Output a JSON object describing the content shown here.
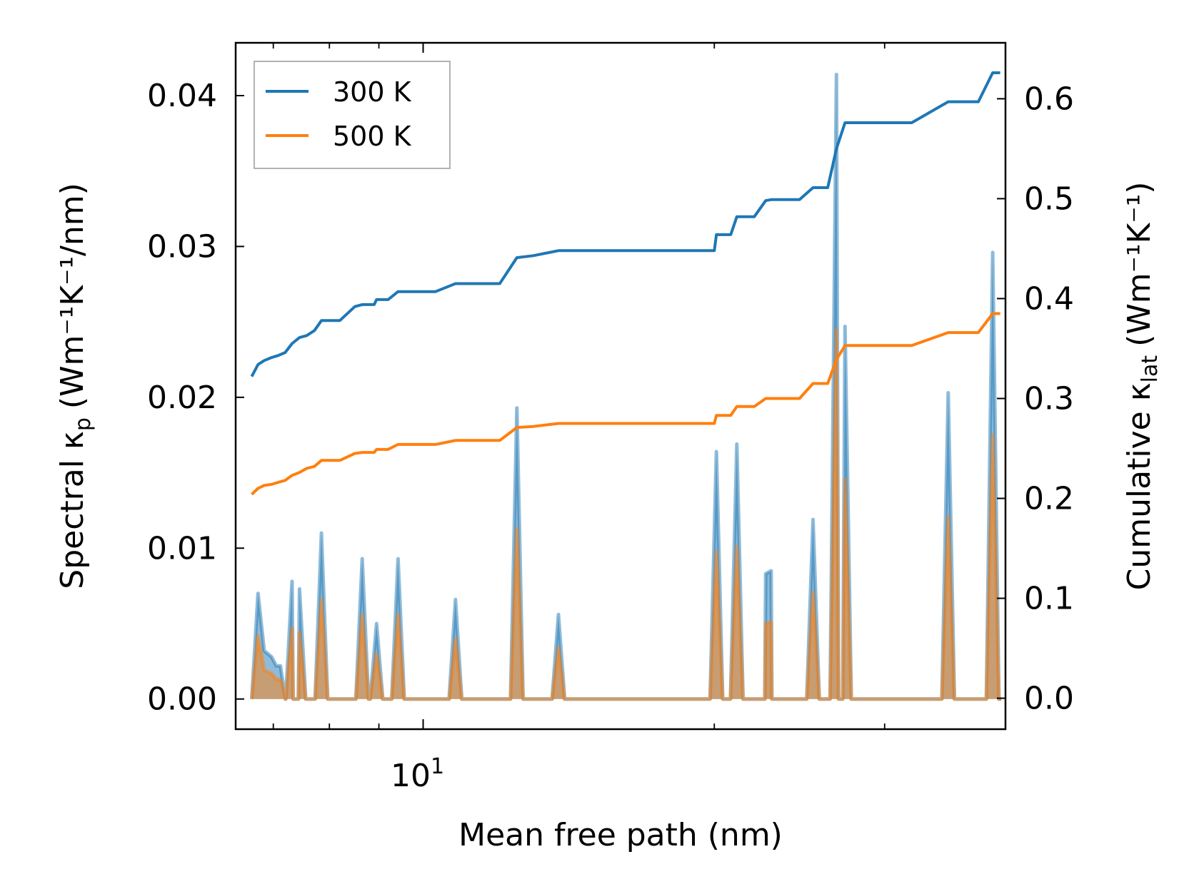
{
  "chart_data": {
    "type": "line",
    "xlabel": "Mean free path (nm)",
    "ylabel_left": {
      "text": "Spectral κ",
      "sub": "p",
      "unit": "(Wm⁻¹K⁻¹/nm)"
    },
    "ylabel_right": {
      "text": "Cumulative κ",
      "sub": "lat",
      "unit": "(Wm⁻¹K⁻¹)"
    },
    "xscale": "log",
    "xlim": [
      6.4,
      40
    ],
    "ylim_left": [
      -0.002,
      0.0435
    ],
    "ylim_right": [
      -0.031,
      0.656
    ],
    "x_tick_labels": [
      {
        "value": 10,
        "base": "10",
        "exp": "1"
      }
    ],
    "y_left_ticks": [
      {
        "value": 0.0,
        "label": "0.00"
      },
      {
        "value": 0.01,
        "label": "0.01"
      },
      {
        "value": 0.02,
        "label": "0.02"
      },
      {
        "value": 0.03,
        "label": "0.03"
      },
      {
        "value": 0.04,
        "label": "0.04"
      }
    ],
    "y_right_ticks": [
      {
        "value": 0.0,
        "label": "0.0"
      },
      {
        "value": 0.1,
        "label": "0.1"
      },
      {
        "value": 0.2,
        "label": "0.2"
      },
      {
        "value": 0.3,
        "label": "0.3"
      },
      {
        "value": 0.4,
        "label": "0.4"
      },
      {
        "value": 0.5,
        "label": "0.5"
      },
      {
        "value": 0.6,
        "label": "0.6"
      }
    ],
    "legend": {
      "placement": "top-left",
      "entries": [
        {
          "name": "300 K",
          "color": "#1f77b4"
        },
        {
          "name": "500 K",
          "color": "#ff7f0e"
        }
      ]
    },
    "spectral_peaks": [
      {
        "x": 6.75,
        "y300": 0.007,
        "y500": 0.0042
      },
      {
        "x": 7.32,
        "y300": 0.0078,
        "y500": 0.0047
      },
      {
        "x": 7.45,
        "y300": 0.0073,
        "y500": 0.0044
      },
      {
        "x": 7.85,
        "y300": 0.011,
        "y500": 0.0066
      },
      {
        "x": 8.65,
        "y300": 0.0093,
        "y500": 0.0056
      },
      {
        "x": 8.95,
        "y300": 0.005,
        "y500": 0.003
      },
      {
        "x": 9.42,
        "y300": 0.0093,
        "y500": 0.0056
      },
      {
        "x": 10.8,
        "y300": 0.0066,
        "y500": 0.004
      },
      {
        "x": 12.5,
        "y300": 0.0193,
        "y500": 0.0113
      },
      {
        "x": 13.8,
        "y300": 0.0056,
        "y500": 0.0034
      },
      {
        "x": 20.1,
        "y300": 0.0164,
        "y500": 0.0098
      },
      {
        "x": 21.1,
        "y300": 0.0169,
        "y500": 0.0101
      },
      {
        "x": 22.6,
        "y300": 0.0083,
        "y500": 0.005
      },
      {
        "x": 22.9,
        "y300": 0.0085,
        "y500": 0.0051
      },
      {
        "x": 25.3,
        "y300": 0.0119,
        "y500": 0.0071
      },
      {
        "x": 26.75,
        "y300": 0.0414,
        "y500": 0.0245
      },
      {
        "x": 27.3,
        "y300": 0.0247,
        "y500": 0.0146
      },
      {
        "x": 34.9,
        "y300": 0.0203,
        "y500": 0.0121
      },
      {
        "x": 38.8,
        "y300": 0.0296,
        "y500": 0.0175
      }
    ],
    "spectral_shoulder": {
      "x": [
        6.65,
        6.75,
        6.85,
        6.97,
        7.05,
        7.12
      ],
      "y300": [
        0.0,
        0.007,
        0.0032,
        0.0028,
        0.0022,
        0.0022
      ],
      "y500": [
        0.0,
        0.0042,
        0.0019,
        0.0017,
        0.0013,
        0.0013
      ]
    },
    "series": [
      {
        "name": "300 K",
        "color": "#1f77b4",
        "x": [
          6.65,
          6.75,
          6.85,
          6.97,
          7.08,
          7.2,
          7.32,
          7.45,
          7.58,
          7.72,
          7.85,
          8.2,
          8.5,
          8.65,
          8.9,
          8.95,
          9.2,
          9.42,
          10.3,
          10.8,
          12.0,
          12.5,
          13.0,
          13.8,
          15.5,
          18.5,
          20.0,
          20.1,
          20.8,
          21.1,
          22.0,
          22.6,
          22.9,
          24.5,
          25.3,
          26.2,
          26.75,
          27.3,
          28.0,
          32.0,
          34.9,
          37.5,
          38.8,
          39.5
        ],
        "y": [
          0.322,
          0.334,
          0.338,
          0.341,
          0.343,
          0.346,
          0.355,
          0.361,
          0.363,
          0.368,
          0.378,
          0.378,
          0.392,
          0.394,
          0.394,
          0.399,
          0.399,
          0.407,
          0.407,
          0.415,
          0.415,
          0.441,
          0.443,
          0.448,
          0.448,
          0.448,
          0.448,
          0.464,
          0.464,
          0.482,
          0.482,
          0.498,
          0.499,
          0.499,
          0.511,
          0.511,
          0.55,
          0.576,
          0.576,
          0.576,
          0.597,
          0.597,
          0.626,
          0.626
        ]
      },
      {
        "name": "500 K",
        "color": "#ff7f0e",
        "x": [
          6.65,
          6.75,
          6.85,
          6.97,
          7.08,
          7.2,
          7.32,
          7.45,
          7.58,
          7.72,
          7.85,
          8.2,
          8.5,
          8.65,
          8.9,
          8.95,
          9.2,
          9.42,
          10.3,
          10.8,
          12.0,
          12.5,
          13.0,
          13.8,
          15.5,
          18.5,
          20.0,
          20.1,
          20.8,
          21.1,
          22.0,
          22.6,
          22.9,
          24.5,
          25.3,
          26.2,
          26.75,
          27.3,
          28.0,
          32.0,
          34.9,
          37.5,
          38.8,
          39.5
        ],
        "y": [
          0.204,
          0.21,
          0.213,
          0.214,
          0.216,
          0.218,
          0.223,
          0.226,
          0.23,
          0.232,
          0.238,
          0.238,
          0.245,
          0.246,
          0.246,
          0.249,
          0.249,
          0.254,
          0.254,
          0.258,
          0.258,
          0.271,
          0.272,
          0.275,
          0.275,
          0.275,
          0.275,
          0.283,
          0.283,
          0.292,
          0.292,
          0.3,
          0.3,
          0.3,
          0.315,
          0.315,
          0.339,
          0.353,
          0.353,
          0.353,
          0.366,
          0.366,
          0.385,
          0.385
        ]
      }
    ]
  }
}
